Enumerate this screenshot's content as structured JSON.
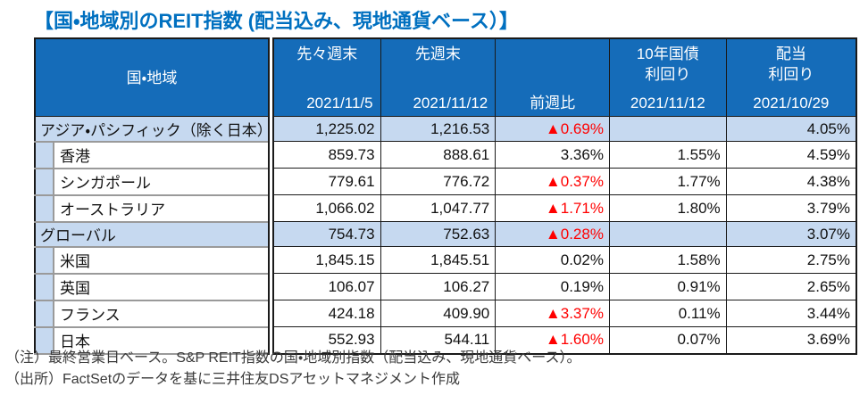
{
  "title": "【国・地域別のREIT指数 (配当込み、現地通貨ベース）】",
  "colors": {
    "header_bg": "#156CB9",
    "group_row_bg": "#C6D9F0",
    "negative_value": "#FF0000",
    "title_text": "#0070C0"
  },
  "table": {
    "headers": {
      "region": "国・地域",
      "prev2_label": "先々週末",
      "prev2_date": "2021/11/5",
      "prev1_label": "先週末",
      "prev1_date": "2021/11/12",
      "wow_label": "前週比",
      "bond_label": "10年国債\n利回り",
      "bond_date": "2021/11/12",
      "dividend_label": "配当\n利回り",
      "dividend_date": "2021/10/29"
    },
    "rows": [
      {
        "type": "group",
        "name": "アジア・パシフィック（除く日本）",
        "prev2": "1,225.02",
        "prev1": "1,216.53",
        "wow": "▲0.69%",
        "bond": "",
        "dividend": "4.05%"
      },
      {
        "type": "sub",
        "name": "香港",
        "prev2": "859.73",
        "prev1": "888.61",
        "wow": "3.36%",
        "bond": "1.55%",
        "dividend": "4.59%"
      },
      {
        "type": "sub",
        "name": "シンガポール",
        "prev2": "779.61",
        "prev1": "776.72",
        "wow": "▲0.37%",
        "bond": "1.77%",
        "dividend": "4.38%"
      },
      {
        "type": "sub",
        "name": "オーストラリア",
        "prev2": "1,066.02",
        "prev1": "1,047.77",
        "wow": "▲1.71%",
        "bond": "1.80%",
        "dividend": "3.79%"
      },
      {
        "type": "group",
        "name": "グローバル",
        "prev2": "754.73",
        "prev1": "752.63",
        "wow": "▲0.28%",
        "bond": "",
        "dividend": "3.07%"
      },
      {
        "type": "sub",
        "name": "米国",
        "prev2": "1,845.15",
        "prev1": "1,845.51",
        "wow": "0.02%",
        "bond": "1.58%",
        "dividend": "2.75%"
      },
      {
        "type": "sub",
        "name": "英国",
        "prev2": "106.07",
        "prev1": "106.27",
        "wow": "0.19%",
        "bond": "0.91%",
        "dividend": "2.65%"
      },
      {
        "type": "sub",
        "name": "フランス",
        "prev2": "424.18",
        "prev1": "409.90",
        "wow": "▲3.37%",
        "bond": "0.11%",
        "dividend": "3.44%"
      },
      {
        "type": "sub",
        "name": "日本",
        "prev2": "552.93",
        "prev1": "544.11",
        "wow": "▲1.60%",
        "bond": "0.07%",
        "dividend": "3.69%"
      }
    ]
  },
  "notes": [
    "（注）最終営業日ベース。S&P  REIT指数の国・地域別指数（配当込み、現地通貨ベース）。",
    "（出所）FactSetのデータを基に三井住友DSアセットマネジメント作成"
  ]
}
